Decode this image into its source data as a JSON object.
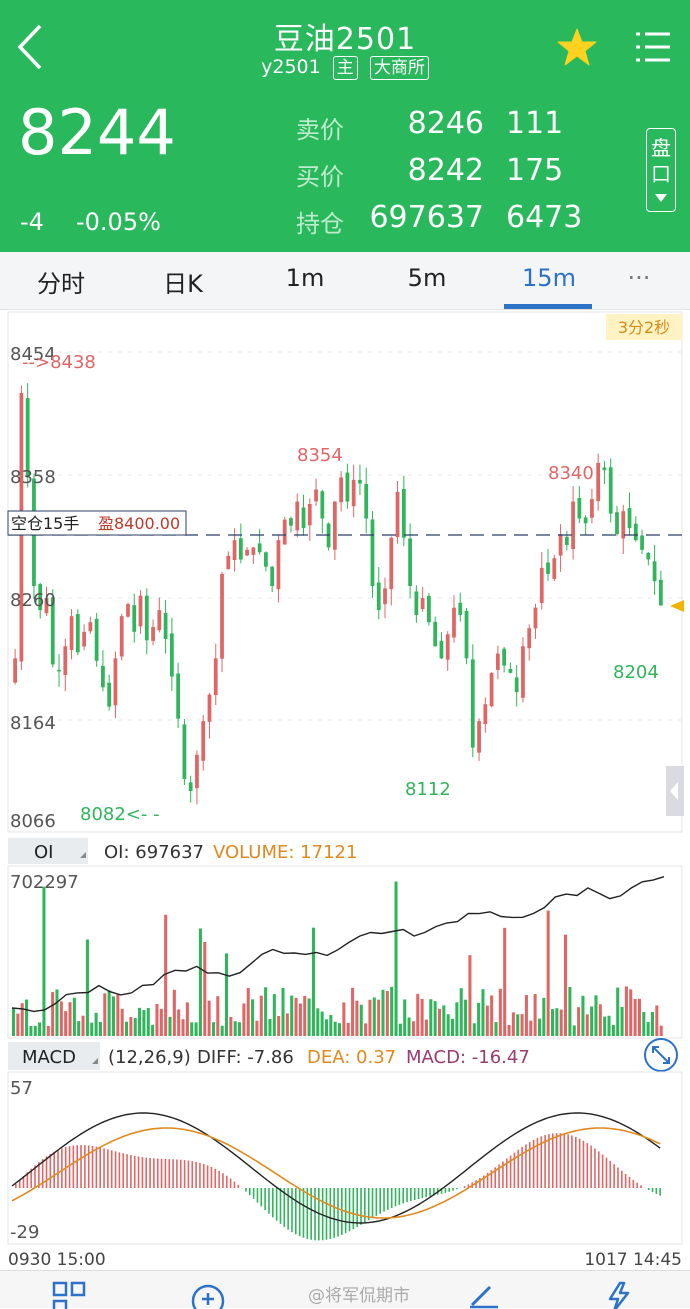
{
  "header": {
    "title": "豆油2501",
    "code": "y2501",
    "tag_main": "主",
    "tag_exchange": "大商所",
    "last_price": "8244",
    "change": "-4",
    "change_pct": "-0.05%",
    "pankou_label": "盘口",
    "quote_rows": [
      {
        "label": "卖价",
        "v1": "8246",
        "v2": "111"
      },
      {
        "label": "买价",
        "v1": "8242",
        "v2": "175"
      },
      {
        "label": "持仓",
        "v1": "697637",
        "v2": "6473"
      }
    ]
  },
  "tabs": [
    {
      "label": "分时"
    },
    {
      "label": "日K"
    },
    {
      "label": "1m"
    },
    {
      "label": "5m"
    },
    {
      "label": "15m",
      "active": true
    },
    {
      "label": "···"
    }
  ],
  "main_chart": {
    "timer": "3分2秒",
    "y_labels": [
      "8454",
      "8358",
      "8260",
      "8164",
      "8066"
    ],
    "ref_line_label": "空仓15手",
    "ref_line_value": "盈8400.00",
    "annotations": {
      "high_start": "-->8438",
      "p8354": "8354",
      "p8340": "8340",
      "low_left": "8082<- -",
      "low_mid": "8112",
      "low_right": "8204"
    }
  },
  "oi_panel": {
    "tab": "OI",
    "oi_label": "OI: 697637",
    "volume_label": "VOLUME: 17121",
    "top_value": "702297"
  },
  "macd_panel": {
    "tab": "MACD",
    "params": "(12,26,9)",
    "diff": "DIFF: -7.86",
    "dea": "DEA: 0.37",
    "macd": "MACD: -16.47",
    "top_value": "57",
    "bottom_value": "-29"
  },
  "time_axis": {
    "start": "0930 15:00",
    "end": "1017 14:45"
  },
  "watermark": "@将军侃期市",
  "colors": {
    "header_green": "#2ab85c",
    "up_red": "#e06666",
    "down_green": "#2fb55a",
    "accent_blue": "#2c72c9",
    "volume_orange": "#e08a1e",
    "macd_purple": "#9a3b6b"
  },
  "chart_data": {
    "type": "candlestick",
    "y_range": [
      8066,
      8454
    ],
    "closes": [
      8200,
      8420,
      8350,
      8260,
      8240,
      8250,
      8195,
      8190,
      8210,
      8235,
      8205,
      8222,
      8230,
      8198,
      8176,
      8160,
      8200,
      8235,
      8245,
      8222,
      8252,
      8215,
      8226,
      8240,
      8216,
      8185,
      8150,
      8100,
      8090,
      8120,
      8148,
      8170,
      8200,
      8270,
      8285,
      8298,
      8282,
      8290,
      8292,
      8288,
      8276,
      8260,
      8298,
      8315,
      8310,
      8330,
      8308,
      8328,
      8340,
      8316,
      8292,
      8330,
      8350,
      8330,
      8348,
      8345,
      8316,
      8260,
      8240,
      8258,
      8300,
      8338,
      8300,
      8260,
      8236,
      8250,
      8230,
      8210,
      8200,
      8220,
      8242,
      8236,
      8200,
      8126,
      8148,
      8162,
      8188,
      8204,
      8194,
      8188,
      8172,
      8210,
      8225,
      8242,
      8275,
      8270,
      8283,
      8303,
      8294,
      8330,
      8316,
      8312,
      8332,
      8362,
      8356,
      8320,
      8303,
      8322,
      8308,
      8298,
      8290,
      8282,
      8264,
      8244
    ],
    "oi_series": "rising from about 680000 to 702297",
    "macd": {
      "diff": -7.86,
      "dea": 0.37,
      "macd": -16.47,
      "range": [
        -29,
        57
      ]
    }
  }
}
